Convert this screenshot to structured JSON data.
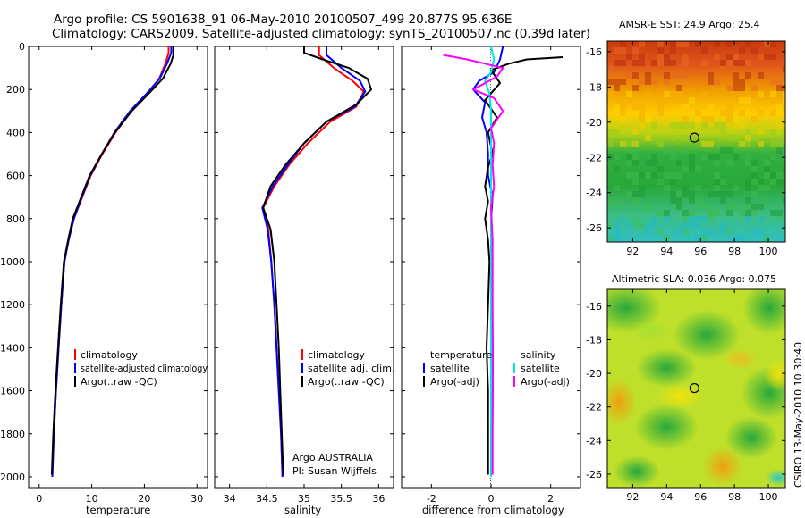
{
  "title": {
    "line1": "Argo profile: CS 5901638_91 06-May-2010 20100507_499 20.877S 95.636E",
    "line2": "Climatology: CARS2009. Satellite-adjusted climatology: synTS_20100507.nc (0.39d later)"
  },
  "panels": {
    "temperature": {
      "xlabel": "temperature",
      "legend": [
        "climatology",
        "satellite-adjusted climatology",
        "Argo(..raw -QC)"
      ]
    },
    "salinity": {
      "xlabel": "salinity",
      "legend": [
        "climatology",
        "satellite adj. clim.",
        "Argo(..raw -QC)"
      ],
      "credit1": "Argo AUSTRALIA",
      "credit2": "PI: Susan Wijffels"
    },
    "difference": {
      "xlabel": "difference from climatology",
      "temp_heading": "temperature",
      "sal_heading": "salinity",
      "temp_legend": [
        "satellite",
        "Argo(-adj)"
      ],
      "sal_legend": [
        "satellite",
        "Argo(-adj)"
      ]
    },
    "sst_map": {
      "title": "AMSR-E SST: 24.9 Argo: 25.4"
    },
    "sla_map": {
      "title": "Altimetric SLA: 0.036 Argo: 0.075"
    }
  },
  "footer": {
    "credit": "CSIRO 13-May-2010 10:30:40"
  },
  "colors": {
    "climatology": "#ff0000",
    "satellite_adjusted": "#0000ff",
    "argo": "#000000",
    "salinity_satellite": "#00e5e5",
    "salinity_argo": "#ff00ff"
  },
  "chart_data": [
    {
      "type": "line",
      "name": "temperature",
      "xlabel": "temperature",
      "ylabel": "",
      "xlim": [
        -2,
        32
      ],
      "ylim": [
        2050,
        0
      ],
      "xticks": [
        0,
        10,
        20,
        30
      ],
      "yticks": [
        0,
        200,
        400,
        600,
        800,
        1000,
        1200,
        1400,
        1600,
        1800,
        2000
      ],
      "grid": false,
      "series": [
        {
          "name": "climatology",
          "color": "#ff0000",
          "points": [
            [
              24.6,
              0
            ],
            [
              24.6,
              30
            ],
            [
              24.0,
              80
            ],
            [
              22.8,
              150
            ],
            [
              20.5,
              220
            ],
            [
              17.5,
              300
            ],
            [
              14.5,
              400
            ],
            [
              12.0,
              500
            ],
            [
              9.8,
              600
            ],
            [
              8.2,
              700
            ],
            [
              6.6,
              800
            ],
            [
              5.6,
              900
            ],
            [
              4.8,
              1000
            ],
            [
              4.2,
              1200
            ],
            [
              3.7,
              1400
            ],
            [
              3.2,
              1600
            ],
            [
              2.8,
              1800
            ],
            [
              2.5,
              2000
            ]
          ]
        },
        {
          "name": "satellite-adjusted climatology",
          "color": "#0000ff",
          "points": [
            [
              25.1,
              0
            ],
            [
              25.1,
              30
            ],
            [
              24.3,
              80
            ],
            [
              22.9,
              150
            ],
            [
              20.4,
              220
            ],
            [
              17.3,
              300
            ],
            [
              14.3,
              400
            ],
            [
              11.9,
              500
            ],
            [
              9.7,
              600
            ],
            [
              8.1,
              700
            ],
            [
              6.6,
              800
            ],
            [
              5.6,
              900
            ],
            [
              4.8,
              1000
            ],
            [
              4.2,
              1200
            ],
            [
              3.7,
              1400
            ],
            [
              3.2,
              1600
            ],
            [
              2.8,
              1800
            ],
            [
              2.5,
              2000
            ]
          ]
        },
        {
          "name": "Argo(..raw -QC)",
          "color": "#000000",
          "points": [
            [
              25.5,
              0
            ],
            [
              25.5,
              40
            ],
            [
              25.0,
              80
            ],
            [
              23.5,
              150
            ],
            [
              20.8,
              220
            ],
            [
              17.6,
              300
            ],
            [
              14.4,
              400
            ],
            [
              11.9,
              500
            ],
            [
              9.6,
              600
            ],
            [
              8.0,
              700
            ],
            [
              6.4,
              800
            ],
            [
              5.5,
              900
            ],
            [
              4.7,
              1000
            ],
            [
              4.1,
              1200
            ],
            [
              3.6,
              1400
            ],
            [
              3.1,
              1600
            ],
            [
              2.7,
              1800
            ],
            [
              2.4,
              1990
            ]
          ]
        }
      ]
    },
    {
      "type": "line",
      "name": "salinity",
      "xlabel": "salinity",
      "ylabel": "",
      "xlim": [
        33.8,
        36.2
      ],
      "ylim": [
        2050,
        0
      ],
      "xticks": [
        34,
        34.5,
        35,
        35.5,
        36
      ],
      "grid": false,
      "series": [
        {
          "name": "climatology",
          "color": "#ff0000",
          "points": [
            [
              35.2,
              0
            ],
            [
              35.2,
              40
            ],
            [
              35.4,
              100
            ],
            [
              35.65,
              160
            ],
            [
              35.8,
              210
            ],
            [
              35.7,
              280
            ],
            [
              35.35,
              350
            ],
            [
              35.05,
              450
            ],
            [
              34.8,
              550
            ],
            [
              34.6,
              650
            ],
            [
              34.45,
              750
            ],
            [
              34.52,
              850
            ],
            [
              34.56,
              1000
            ],
            [
              34.6,
              1200
            ],
            [
              34.63,
              1400
            ],
            [
              34.66,
              1600
            ],
            [
              34.69,
              1800
            ],
            [
              34.71,
              2000
            ]
          ]
        },
        {
          "name": "satellite adj. clim.",
          "color": "#0000ff",
          "points": [
            [
              35.3,
              0
            ],
            [
              35.3,
              40
            ],
            [
              35.5,
              100
            ],
            [
              35.75,
              160
            ],
            [
              35.82,
              210
            ],
            [
              35.68,
              280
            ],
            [
              35.3,
              350
            ],
            [
              35.0,
              450
            ],
            [
              34.78,
              550
            ],
            [
              34.58,
              650
            ],
            [
              34.44,
              750
            ],
            [
              34.51,
              850
            ],
            [
              34.56,
              1000
            ],
            [
              34.6,
              1200
            ],
            [
              34.63,
              1400
            ],
            [
              34.66,
              1600
            ],
            [
              34.69,
              1800
            ],
            [
              34.71,
              2000
            ]
          ]
        },
        {
          "name": "Argo(..raw -QC)",
          "color": "#000000",
          "points": [
            [
              35.0,
              0
            ],
            [
              35.0,
              30
            ],
            [
              35.25,
              60
            ],
            [
              35.6,
              100
            ],
            [
              35.85,
              150
            ],
            [
              35.9,
              200
            ],
            [
              35.7,
              270
            ],
            [
              35.3,
              350
            ],
            [
              35.0,
              450
            ],
            [
              34.75,
              550
            ],
            [
              34.55,
              650
            ],
            [
              34.45,
              750
            ],
            [
              34.55,
              850
            ],
            [
              34.6,
              1000
            ],
            [
              34.63,
              1200
            ],
            [
              34.66,
              1400
            ],
            [
              34.68,
              1600
            ],
            [
              34.7,
              1800
            ],
            [
              34.72,
              1990
            ]
          ]
        }
      ]
    },
    {
      "type": "line",
      "name": "difference from climatology",
      "xlabel": "difference from climatology",
      "ylabel": "",
      "xlim": [
        -3,
        3
      ],
      "ylim": [
        2050,
        0
      ],
      "xticks": [
        -2,
        0,
        2
      ],
      "grid": false,
      "series": [
        {
          "name": "temperature satellite",
          "color": "#0000ff",
          "points": [
            [
              0.4,
              0
            ],
            [
              0.3,
              60
            ],
            [
              0.1,
              120
            ],
            [
              -0.4,
              160
            ],
            [
              -0.6,
              200
            ],
            [
              -0.2,
              260
            ],
            [
              -0.3,
              330
            ],
            [
              -0.15,
              400
            ],
            [
              -0.1,
              500
            ],
            [
              -0.1,
              600
            ],
            [
              0.05,
              700
            ],
            [
              0.0,
              800
            ],
            [
              0.0,
              1000
            ],
            [
              0.0,
              1200
            ],
            [
              0.0,
              1400
            ],
            [
              0.0,
              1600
            ],
            [
              0.0,
              1800
            ],
            [
              0.0,
              2000
            ]
          ]
        },
        {
          "name": "temperature Argo(-adj)",
          "color": "#000000",
          "points": [
            [
              2.4,
              50
            ],
            [
              1.2,
              60
            ],
            [
              0.6,
              80
            ],
            [
              0.0,
              110
            ],
            [
              0.3,
              170
            ],
            [
              -0.2,
              250
            ],
            [
              0.2,
              330
            ],
            [
              -0.1,
              400
            ],
            [
              0.05,
              500
            ],
            [
              -0.1,
              560
            ],
            [
              -0.2,
              650
            ],
            [
              -0.1,
              720
            ],
            [
              -0.2,
              800
            ],
            [
              -0.1,
              900
            ],
            [
              -0.05,
              1000
            ],
            [
              -0.1,
              1200
            ],
            [
              -0.15,
              1400
            ],
            [
              -0.1,
              1600
            ],
            [
              -0.1,
              1800
            ],
            [
              -0.1,
              1990
            ]
          ]
        },
        {
          "name": "salinity satellite",
          "color": "#00e5e5",
          "points": [
            [
              0.0,
              0
            ],
            [
              0.1,
              60
            ],
            [
              0.0,
              120
            ],
            [
              -0.2,
              160
            ],
            [
              -0.05,
              220
            ],
            [
              0.0,
              300
            ],
            [
              0.0,
              400
            ],
            [
              0.0,
              600
            ],
            [
              0.0,
              800
            ],
            [
              0.0,
              1000
            ],
            [
              0.0,
              1200
            ],
            [
              0.0,
              1400
            ],
            [
              0.0,
              1600
            ],
            [
              0.0,
              1800
            ],
            [
              0.0,
              2000
            ]
          ]
        },
        {
          "name": "salinity Argo(-adj)",
          "color": "#ff00ff",
          "points": [
            [
              -1.6,
              40
            ],
            [
              -0.8,
              60
            ],
            [
              -0.2,
              80
            ],
            [
              0.4,
              100
            ],
            [
              0.2,
              140
            ],
            [
              -0.6,
              200
            ],
            [
              0.1,
              240
            ],
            [
              0.4,
              300
            ],
            [
              0.0,
              380
            ],
            [
              0.1,
              450
            ],
            [
              0.05,
              550
            ],
            [
              0.1,
              650
            ],
            [
              0.0,
              750
            ],
            [
              0.05,
              900
            ],
            [
              0.05,
              1000
            ],
            [
              0.05,
              1200
            ],
            [
              0.06,
              1400
            ],
            [
              0.06,
              1600
            ],
            [
              0.05,
              1800
            ],
            [
              0.05,
              1990
            ]
          ]
        }
      ]
    },
    {
      "type": "heatmap",
      "name": "AMSR-E SST",
      "title": "AMSR-E SST: 24.9 Argo: 25.4",
      "xlim": [
        90.5,
        101
      ],
      "ylim": [
        -26.8,
        -15.4
      ],
      "xticks": [
        92,
        94,
        96,
        98,
        100
      ],
      "yticks": [
        -16,
        -18,
        -20,
        -22,
        -24,
        -26
      ],
      "marker": {
        "lon": 95.636,
        "lat": -20.877
      }
    },
    {
      "type": "heatmap",
      "name": "Altimetric SLA",
      "title": "Altimetric SLA: 0.036 Argo: 0.075",
      "xlim": [
        90.5,
        101
      ],
      "ylim": [
        -26.8,
        -15.0
      ],
      "xticks": [
        92,
        94,
        96,
        98,
        100
      ],
      "yticks": [
        -16,
        -18,
        -20,
        -22,
        -24,
        -26
      ],
      "marker": {
        "lon": 95.636,
        "lat": -20.877
      }
    }
  ]
}
